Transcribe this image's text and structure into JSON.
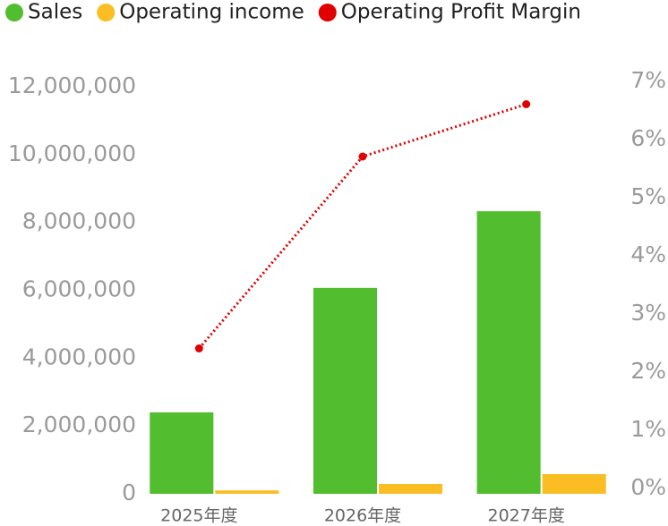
{
  "chart_data": {
    "type": "bar",
    "categories": [
      "2025年度",
      "2026年度",
      "2027年度"
    ],
    "series": [
      {
        "name": "Sales",
        "color": "#52bd2e",
        "values": [
          2400000,
          6070000,
          8330000
        ]
      },
      {
        "name": "Operating income",
        "color": "#fbbd24",
        "values": [
          100000,
          290000,
          580000
        ]
      },
      {
        "name": "Operating Profit Margin",
        "color": "#e00000",
        "type": "line",
        "axis": "y2",
        "values": [
          2.5,
          5.8,
          6.7
        ]
      }
    ],
    "ylim": [
      0,
      12000000
    ],
    "yticks": [
      0,
      {
        "value": 2000000,
        "label": "2,000,000"
      },
      {
        "value": 4000000,
        "label": "4,000,000"
      },
      {
        "value": 6000000,
        "label": "6,000,000"
      },
      {
        "value": 8000000,
        "label": "8,000,000"
      },
      {
        "value": 10000000,
        "label": "10,000,000"
      },
      {
        "value": 12000000,
        "label": "12,000,000"
      }
    ],
    "y2lim": [
      0,
      7
    ],
    "y2ticks": [
      {
        "value": 0,
        "label": "0%"
      },
      {
        "value": 1,
        "label": "1%"
      },
      {
        "value": 2,
        "label": "2%"
      },
      {
        "value": 3,
        "label": "3%"
      },
      {
        "value": 4,
        "label": "4%"
      },
      {
        "value": 5,
        "label": "5%"
      },
      {
        "value": 6,
        "label": "6%"
      },
      {
        "value": 7,
        "label": "7%"
      }
    ],
    "grid": false,
    "legend": "top"
  }
}
